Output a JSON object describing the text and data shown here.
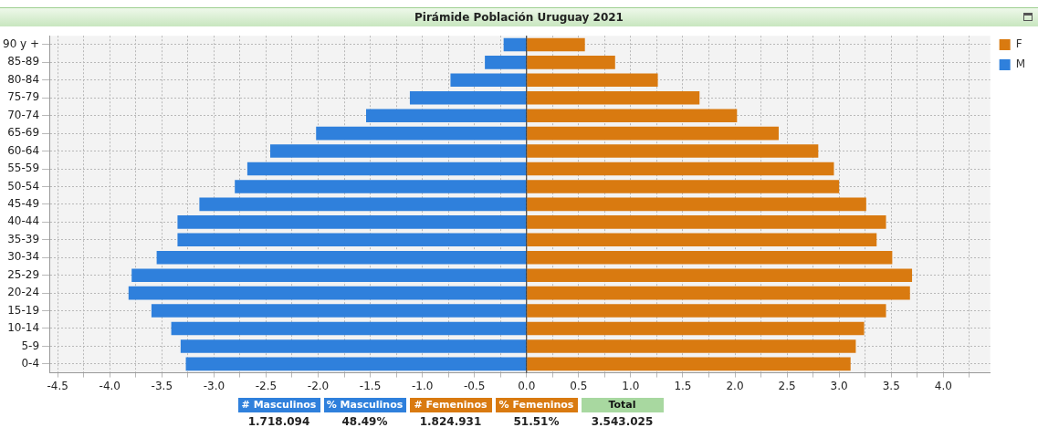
{
  "chart_data": {
    "type": "bar",
    "orientation": "horizontal",
    "stacked": true,
    "title": "Pirámide Población Uruguay 2021",
    "categories": [
      "90 y +",
      "85-89",
      "80-84",
      "75-79",
      "70-74",
      "65-69",
      "60-64",
      "55-59",
      "50-54",
      "45-49",
      "40-44",
      "35-39",
      "30-34",
      "25-29",
      "20-24",
      "15-19",
      "10-14",
      "5-9",
      "0-4"
    ],
    "series": [
      {
        "name": "F",
        "color": "#d97a10",
        "values": [
          0.56,
          0.85,
          1.26,
          1.66,
          2.02,
          2.42,
          2.8,
          2.95,
          3.0,
          3.26,
          3.45,
          3.36,
          3.51,
          3.7,
          3.68,
          3.45,
          3.24,
          3.16,
          3.11
        ]
      },
      {
        "name": "M",
        "color": "#2f80dc",
        "values": [
          -0.22,
          -0.4,
          -0.73,
          -1.12,
          -1.54,
          -2.02,
          -2.46,
          -2.68,
          -2.8,
          -3.14,
          -3.35,
          -3.35,
          -3.55,
          -3.79,
          -3.82,
          -3.6,
          -3.41,
          -3.32,
          -3.27
        ]
      }
    ],
    "xlim": [
      -4.58,
      4.45
    ],
    "xticks": [
      {
        "value": -4.5,
        "label": "-4.5"
      },
      {
        "value": -4.25,
        "label": null
      },
      {
        "value": -4,
        "label": "-4.0"
      },
      {
        "value": -3.75,
        "label": null
      },
      {
        "value": -3.5,
        "label": "-3.5"
      },
      {
        "value": -3.25,
        "label": null
      },
      {
        "value": -3,
        "label": "-3.0"
      },
      {
        "value": -2.75,
        "label": null
      },
      {
        "value": -2.5,
        "label": "-2.5"
      },
      {
        "value": -2.25,
        "label": null
      },
      {
        "value": -2,
        "label": "-2.0"
      },
      {
        "value": -1.75,
        "label": null
      },
      {
        "value": -1.5,
        "label": "-1.5"
      },
      {
        "value": -1.25,
        "label": null
      },
      {
        "value": -1,
        "label": "-1.0"
      },
      {
        "value": -0.75,
        "label": null
      },
      {
        "value": -0.5,
        "label": "-0.5"
      },
      {
        "value": -0.25,
        "label": null
      },
      {
        "value": 0,
        "label": "0.0"
      },
      {
        "value": 0.25,
        "label": null
      },
      {
        "value": 0.5,
        "label": "0.5"
      },
      {
        "value": 0.75,
        "label": null
      },
      {
        "value": 1,
        "label": "1.0"
      },
      {
        "value": 1.25,
        "label": null
      },
      {
        "value": 1.5,
        "label": "1.5"
      },
      {
        "value": 1.75,
        "label": null
      },
      {
        "value": 2,
        "label": "2.0"
      },
      {
        "value": 2.25,
        "label": null
      },
      {
        "value": 2.5,
        "label": "2.5"
      },
      {
        "value": 2.75,
        "label": null
      },
      {
        "value": 3,
        "label": "3.0"
      },
      {
        "value": 3.25,
        "label": null
      },
      {
        "value": 3.5,
        "label": "3.5"
      },
      {
        "value": 3.75,
        "label": null
      },
      {
        "value": 4,
        "label": "4.0"
      },
      {
        "value": 4.25,
        "label": null
      }
    ],
    "grid": true,
    "legend": "top right",
    "annotations": [
      "# Masculinos",
      "% Masculinos",
      "# Femeninos",
      "% Femeninos",
      "Total",
      "1.718.094",
      "48.49%",
      "1.824.931",
      "51.51%",
      "3.543.025"
    ]
  }
}
